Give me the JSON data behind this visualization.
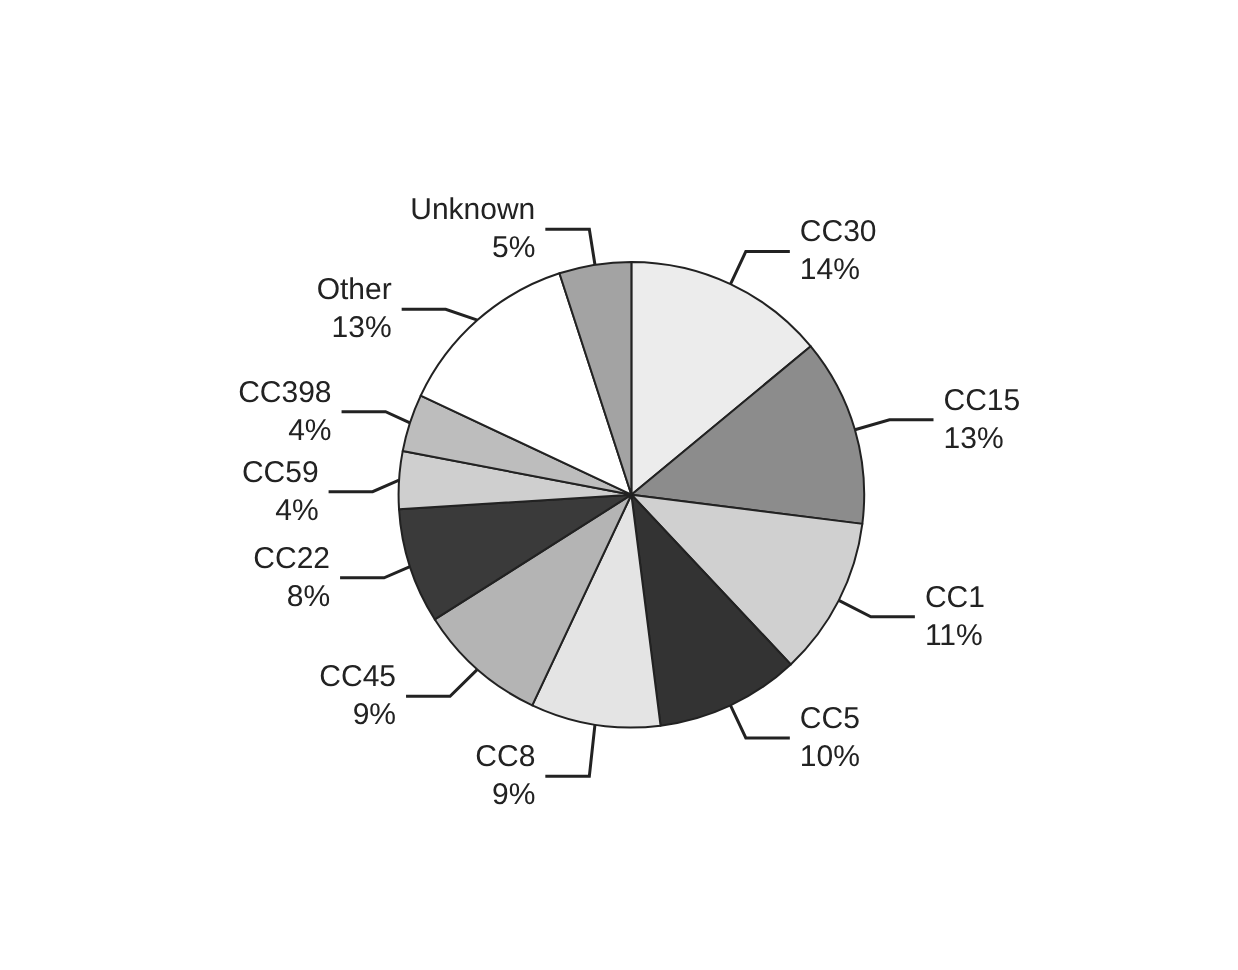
{
  "chart_data": {
    "type": "pie",
    "categories": [
      "CC30",
      "CC15",
      "CC1",
      "CC5",
      "CC8",
      "CC45",
      "CC22",
      "CC59",
      "CC398",
      "Other",
      "Unknown"
    ],
    "values": [
      14,
      13,
      11,
      10,
      9,
      9,
      8,
      4,
      4,
      13,
      5
    ],
    "value_labels": [
      "14%",
      "13%",
      "11%",
      "10%",
      "9%",
      "9%",
      "8%",
      "4%",
      "4%",
      "13%",
      "5%"
    ],
    "colors": [
      "#ececec",
      "#8c8c8c",
      "#d0d0d0",
      "#333333",
      "#e4e4e4",
      "#b4b4b4",
      "#3a3a3a",
      "#cfcfcf",
      "#bdbdbd",
      "#ffffff",
      "#a3a3a3"
    ],
    "legend": false
  }
}
